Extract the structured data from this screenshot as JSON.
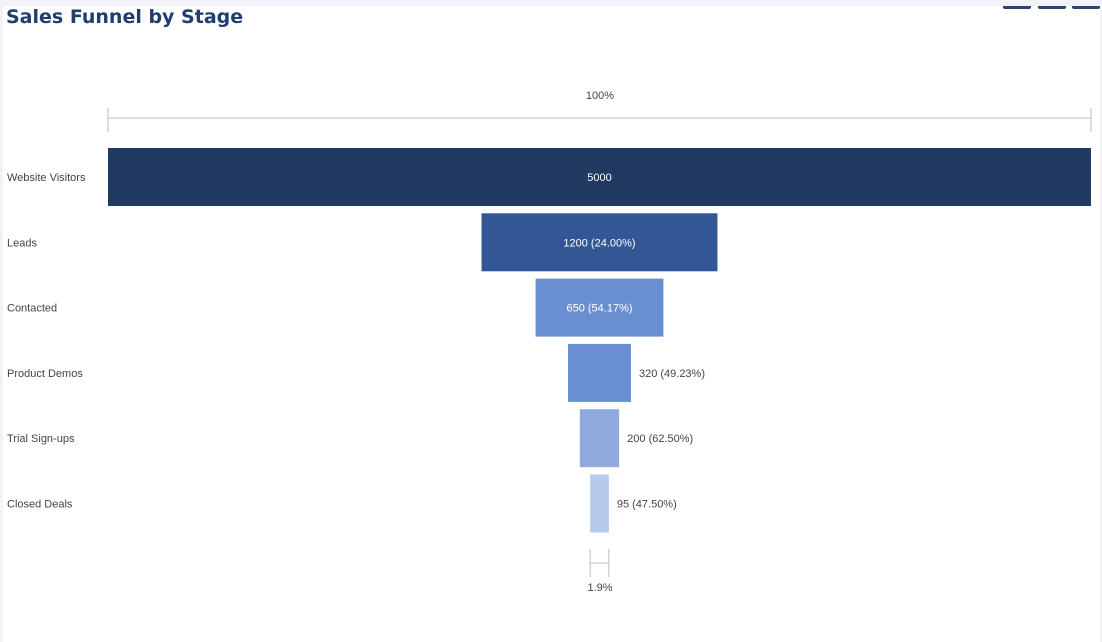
{
  "title": "Sales Funnel by Stage",
  "chart_data": {
    "type": "funnel",
    "title": "Sales Funnel by Stage",
    "categories": [
      "Website Visitors",
      "Leads",
      "Contacted",
      "Product Demos",
      "Trial Sign-ups",
      "Closed Deals"
    ],
    "values": [
      5000,
      1200,
      650,
      320,
      200,
      95
    ],
    "value_labels": [
      "5000",
      "1200 (24.00%)",
      "650 (54.17%)",
      "320 (49.23%)",
      "200 (62.50%)",
      "95 (47.50%)"
    ],
    "colors": [
      "#223962",
      "#335794",
      "#6a8fd0",
      "#6a8fd0",
      "#8fabde",
      "#b7c9ec"
    ],
    "top_percent_label": "100%",
    "bottom_percent_label": "1.9%",
    "grid": false,
    "legend": "none"
  }
}
